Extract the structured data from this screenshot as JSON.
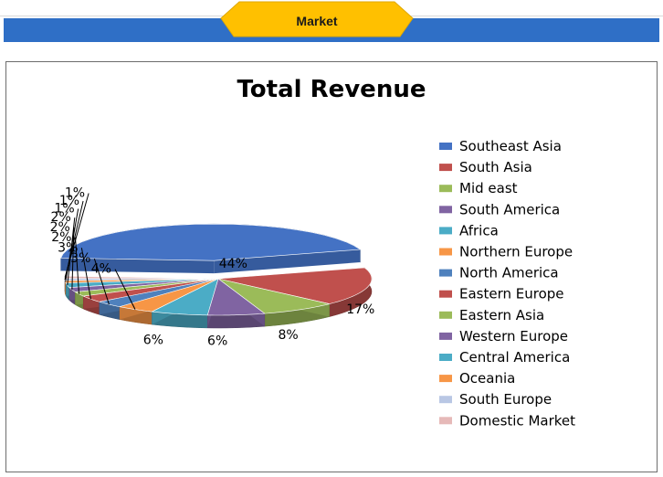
{
  "header": {
    "tab_label": "Market",
    "bar_color": "#2f6fc6",
    "tab_color": "#ffc000"
  },
  "chart_data": {
    "type": "pie",
    "title": "Total Revenue",
    "legend_position": "right",
    "categories": [
      "Southeast Asia",
      "South Asia",
      "Mid east",
      "South America",
      "Africa",
      "Northern Europe",
      "North America",
      "Eastern Europe",
      "Eastern Asia",
      "Western Europe",
      "Central America",
      "Oceania",
      "South Europe",
      "Domestic Market"
    ],
    "values": [
      44,
      17,
      8,
      6,
      6,
      4,
      3,
      3,
      2,
      2,
      2,
      1,
      1,
      1
    ],
    "labels": [
      "44%",
      "17%",
      "8%",
      "6%",
      "6%",
      "4%",
      "3%",
      "3%",
      "2%",
      "2%",
      "2%",
      "1%",
      "1%",
      "1%"
    ],
    "colors": [
      "#4472c4",
      "#c0504d",
      "#9bbb59",
      "#8064a2",
      "#4bacc6",
      "#f79646",
      "#4f81bd",
      "#c0504d",
      "#9bbb59",
      "#8064a2",
      "#4bacc6",
      "#f79646",
      "#b9c7e4",
      "#e6b9b8"
    ],
    "exploded_slice": "Southeast Asia"
  }
}
